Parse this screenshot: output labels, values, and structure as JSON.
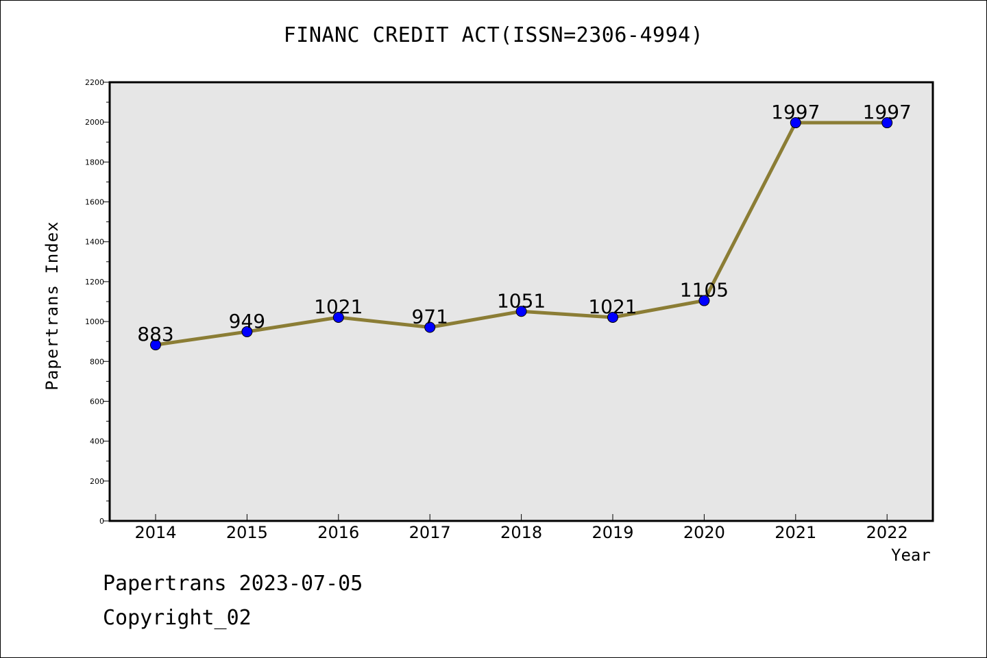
{
  "chart_data": {
    "type": "line",
    "title": "FINANC CREDIT ACT(ISSN=2306-4994)",
    "xlabel": "Year",
    "ylabel": "Papertrans Index",
    "categories": [
      "2014",
      "2015",
      "2016",
      "2017",
      "2018",
      "2019",
      "2020",
      "2021",
      "2022"
    ],
    "series": [
      {
        "values": [
          883,
          949,
          1021,
          971,
          1051,
          1021,
          1105,
          1997,
          1997
        ]
      }
    ],
    "ylim": [
      0,
      2200
    ],
    "yticks": [
      0,
      200,
      400,
      600,
      800,
      1000,
      1200,
      1400,
      1600,
      1800,
      2000,
      2200
    ],
    "grid": false,
    "colors": {
      "line": "#8b7d35",
      "marker": "#0000ff",
      "plot_background": "#e6e6e6"
    }
  },
  "footer": {
    "line1": "Papertrans 2023-07-05",
    "line2": "Copyright_02"
  }
}
